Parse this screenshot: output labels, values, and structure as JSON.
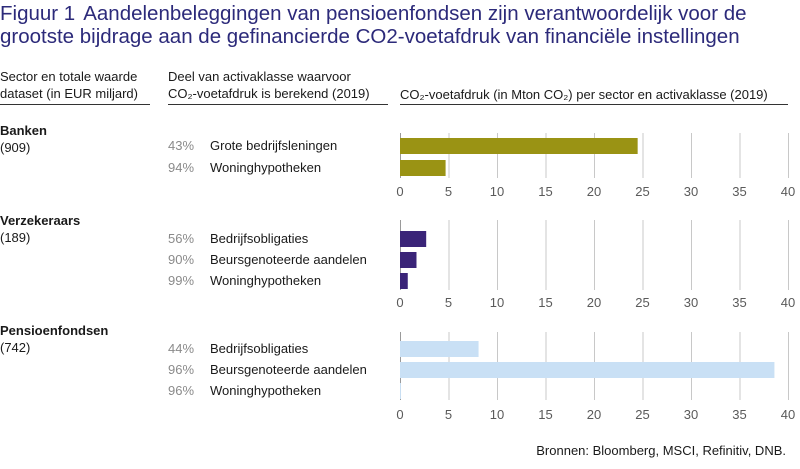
{
  "title": {
    "figure": "Figuur 1",
    "text_line1": "Aandelenbeleggingen van pensioenfondsen zijn verantwoordelijk voor de",
    "text_line2": "grootste bijdrage aan de gefinancierde CO2-voetafdruk van financiële instellingen"
  },
  "columns": {
    "sector_line1": "Sector en totale waarde",
    "sector_line2": "dataset (in EUR miljard)",
    "share_line1": "Deel van activaklasse waarvoor",
    "share_line2": "CO₂-voetafdruk is berekend (2019)",
    "footprint": "CO₂-voetafdruk (in Mton CO₂) per sector en activaklasse (2019)"
  },
  "source": "Bronnen: Bloomberg, MSCI, Refinitiv, DNB.",
  "colors": {
    "banken": "#9a9314",
    "verzekeraars": "#3a2478",
    "pensioenfondsen": "#c9e0f5",
    "title": "#2c2a7a"
  },
  "chart_data": {
    "type": "bar",
    "orientation": "horizontal",
    "xlim": [
      0,
      40
    ],
    "xticks": [
      "0",
      "5",
      "10",
      "15",
      "20",
      "25",
      "30",
      "35",
      "40"
    ],
    "grid": true,
    "panels": [
      {
        "sector": "Banken",
        "total": "(909)",
        "color": "#9a9314",
        "rows": [
          {
            "share": "43%",
            "label": "Grote bedrijfsleningen",
            "value": 24.5
          },
          {
            "share": "94%",
            "label": "Woninghypotheken",
            "value": 4.7
          }
        ]
      },
      {
        "sector": "Verzekeraars",
        "total": "(189)",
        "color": "#3a2478",
        "rows": [
          {
            "share": "56%",
            "label": "Bedrijfsobligaties",
            "value": 2.7
          },
          {
            "share": "90%",
            "label": "Beursgenoteerde aandelen",
            "value": 1.7
          },
          {
            "share": "99%",
            "label": "Woninghypotheken",
            "value": 0.8
          }
        ]
      },
      {
        "sector": "Pensioenfondsen",
        "total": "(742)",
        "color": "#c9e0f5",
        "rows": [
          {
            "share": "44%",
            "label": "Bedrijfsobligaties",
            "value": 8.1
          },
          {
            "share": "96%",
            "label": "Beursgenoteerde aandelen",
            "value": 38.6
          },
          {
            "share": "96%",
            "label": "Woninghypotheken",
            "value": 0.1
          }
        ]
      }
    ]
  }
}
